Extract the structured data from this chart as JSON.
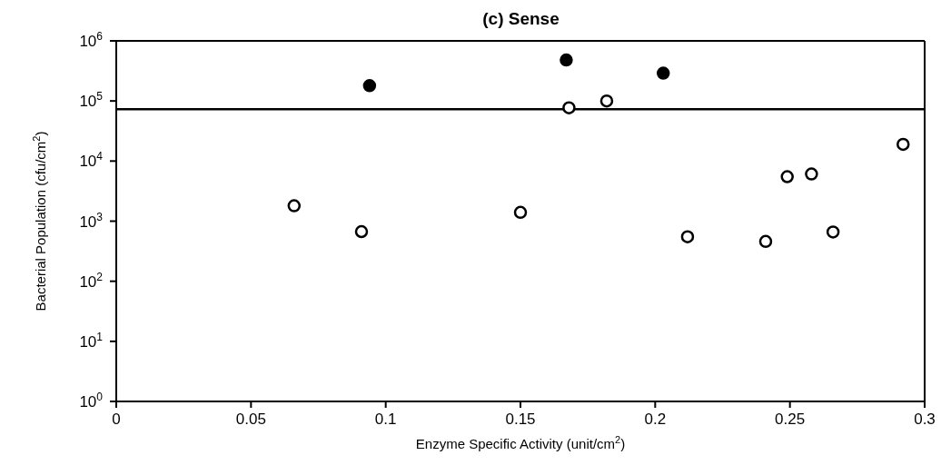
{
  "chart_data": {
    "type": "scatter",
    "title": "(c) Sense",
    "xlabel": "Enzyme Specific Activity (unit/cm$^{2}$)",
    "ylabel": "Bacterial Population (cfu/cm$^{2}$)",
    "log": "y",
    "xlim": [
      0,
      0.3
    ],
    "xticks": [
      0,
      0.05,
      0.1,
      0.15,
      0.2,
      0.25,
      0.3
    ],
    "ylim": [
      1,
      1000000
    ],
    "yticks": [
      {
        "value": 1,
        "label": "10$^{0}$"
      },
      {
        "value": 10,
        "label": "10$^{1}$"
      },
      {
        "value": 100,
        "label": "10$^{2}$"
      },
      {
        "value": 1000,
        "label": "10$^{3}$"
      },
      {
        "value": 10000,
        "label": "10$^{4}$"
      },
      {
        "value": 100000,
        "label": "10$^{5}$"
      },
      {
        "value": 1000000,
        "label": "10$^{6}$"
      }
    ],
    "marker": "circle",
    "grid": false,
    "legend": false,
    "series": [
      {
        "color": "#000000",
        "x": [
          0.094,
          0.167,
          0.203
        ],
        "values": [
          180000,
          480000,
          290000
        ]
      },
      {
        "color": "#ffffff",
        "x": [
          0.066,
          0.091,
          0.15,
          0.168,
          0.182,
          0.212,
          0.241,
          0.249,
          0.258,
          0.266,
          0.292
        ],
        "values": [
          1800,
          670,
          1400,
          77000,
          100000,
          550,
          460,
          5500,
          6100,
          660,
          19000
        ]
      }
    ],
    "ref_lines": [
      {
        "axis": "y",
        "value": 73000,
        "color": "#000000",
        "line_style": "solid"
      }
    ]
  }
}
